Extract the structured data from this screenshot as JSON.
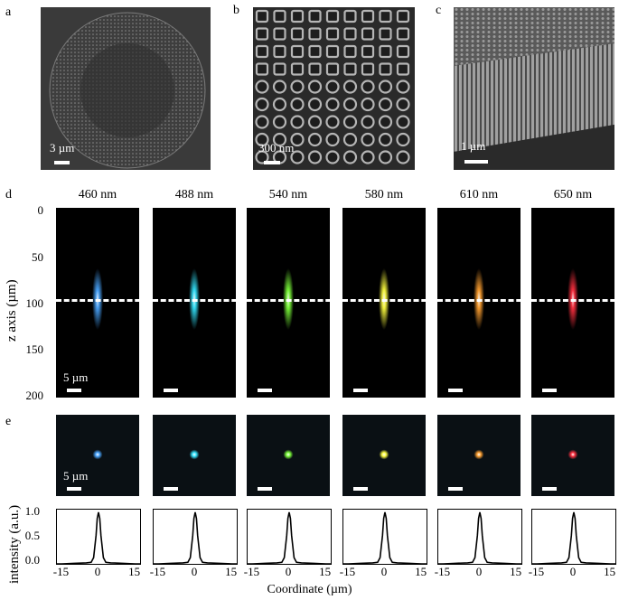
{
  "panel_labels": {
    "a": "a",
    "b": "b",
    "c": "c",
    "d": "d",
    "e": "e"
  },
  "top_images": {
    "a_scale": "3 µm",
    "b_scale": "300 nm",
    "c_scale": "1 µm"
  },
  "row_d": {
    "wavelengths": [
      "460 nm",
      "488 nm",
      "540 nm",
      "580 nm",
      "610 nm",
      "650 nm"
    ],
    "colors": [
      "#4aa6ff",
      "#35e6ff",
      "#7cff3a",
      "#ffff40",
      "#ffa030",
      "#ff3040"
    ],
    "scale": "5 µm",
    "ylabel": "z axis (µm)",
    "yticks": [
      "0",
      "50",
      "100",
      "150",
      "200"
    ]
  },
  "row_e": {
    "scale": "5 µm",
    "ylabel": "intensity (a.u.)",
    "yticks": [
      "1.0",
      "0.5",
      "0.0"
    ],
    "xticks": [
      "-15",
      "0",
      "15"
    ],
    "xlabel": "Coordinate (µm)"
  },
  "chart_data": {
    "type": "line",
    "title": "",
    "xlabel": "Coordinate (µm)",
    "ylabel": "intensity (a.u.)",
    "xlim": [
      -17,
      17
    ],
    "ylim": [
      0,
      1.05
    ],
    "series_per_panel": [
      "460 nm",
      "488 nm",
      "540 nm",
      "580 nm",
      "610 nm",
      "650 nm"
    ],
    "x": [
      -17,
      -15,
      -10,
      -5,
      -3,
      -2,
      -1,
      -0.5,
      0,
      0.5,
      1,
      2,
      3,
      5,
      10,
      15,
      17
    ],
    "y": [
      0,
      0,
      0.01,
      0.02,
      0.03,
      0.12,
      0.55,
      0.88,
      1.0,
      0.88,
      0.55,
      0.12,
      0.03,
      0.02,
      0.01,
      0,
      0
    ]
  }
}
